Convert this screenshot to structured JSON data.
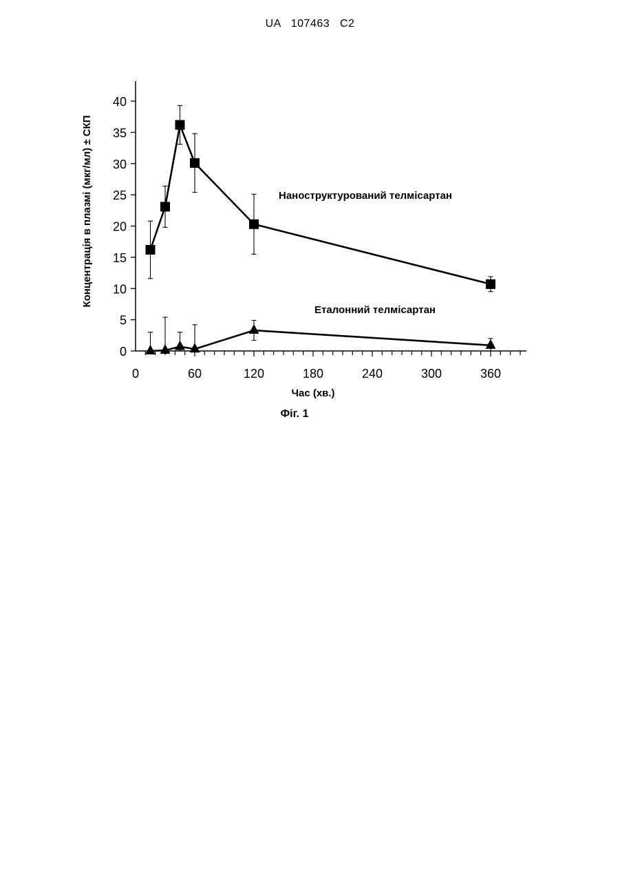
{
  "document": {
    "header": "UA   107463   C2",
    "figure_caption": "Фіг. 1"
  },
  "chart_data": {
    "type": "line",
    "title": "",
    "xlabel": "Час (хв.)",
    "ylabel": "Концентрація в плазмі (мкг/мл) ± СКП",
    "xlim": [
      0,
      390
    ],
    "ylim": [
      0,
      40
    ],
    "xticks": [
      0,
      60,
      120,
      180,
      240,
      300,
      360
    ],
    "yticks": [
      0,
      5,
      10,
      15,
      20,
      25,
      30,
      35,
      40
    ],
    "grid": false,
    "series": [
      {
        "name": "Наноструктурований телмісартан",
        "marker": "square",
        "x": [
          15,
          30,
          45,
          60,
          120,
          360
        ],
        "y": [
          16.2,
          23.1,
          36.2,
          30.1,
          20.3,
          10.7
        ],
        "error": [
          4.6,
          3.3,
          3.1,
          4.7,
          4.8,
          1.2
        ]
      },
      {
        "name": "Еталонний телмісартан",
        "marker": "triangle",
        "x": [
          15,
          30,
          45,
          60,
          120,
          360
        ],
        "y": [
          0.0,
          0.1,
          0.7,
          0.3,
          3.3,
          0.9
        ],
        "error": [
          3.0,
          5.3,
          2.3,
          3.9,
          1.6,
          1.1
        ]
      }
    ]
  }
}
